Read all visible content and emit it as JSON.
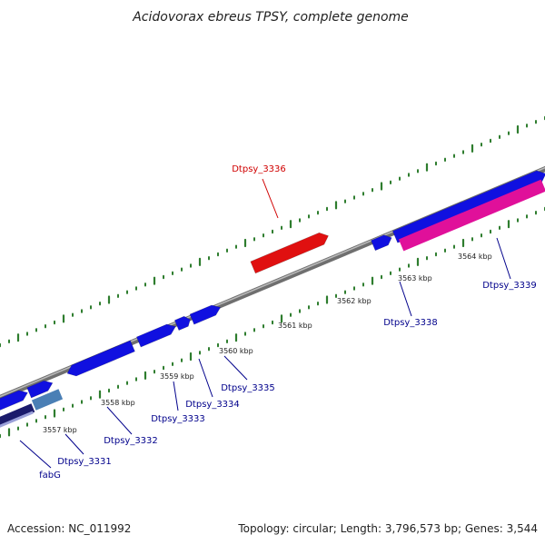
{
  "title": "Acidovorax ebreus TPSY, complete genome",
  "footer": {
    "accession": "Accession: NC_011992",
    "info": "Topology: circular; Length: 3,796,573 bp; Genes: 3,544"
  },
  "colors": {
    "backbone": "#888888",
    "tick": "#2e7d2e",
    "gene_blue": "#1010e0",
    "gene_red": "#e01010",
    "gene_pink": "#e0109a",
    "gene_light_blue": "#4a7fb5",
    "gene_dark_navy": "#1b1b6b",
    "label_blue": "#00008b",
    "label_red": "#d00000"
  },
  "scale_labels": [
    "3557 kbp",
    "3558 kbp",
    "3559 kbp",
    "3560 kbp",
    "3561 kbp",
    "3562 kbp",
    "3563 kbp",
    "3564 kbp"
  ],
  "gene_labels": [
    {
      "text": "Dtpsy_3336",
      "color": "red"
    },
    {
      "text": "Dtpsy_3335",
      "color": "blue"
    },
    {
      "text": "Dtpsy_3334",
      "color": "blue"
    },
    {
      "text": "Dtpsy_3333",
      "color": "blue"
    },
    {
      "text": "Dtpsy_3332",
      "color": "blue"
    },
    {
      "text": "Dtpsy_3331",
      "color": "blue"
    },
    {
      "text": "fabG",
      "color": "blue"
    },
    {
      "text": "Dtpsy_3338",
      "color": "blue"
    },
    {
      "text": "Dtpsy_3339",
      "color": "blue"
    }
  ]
}
